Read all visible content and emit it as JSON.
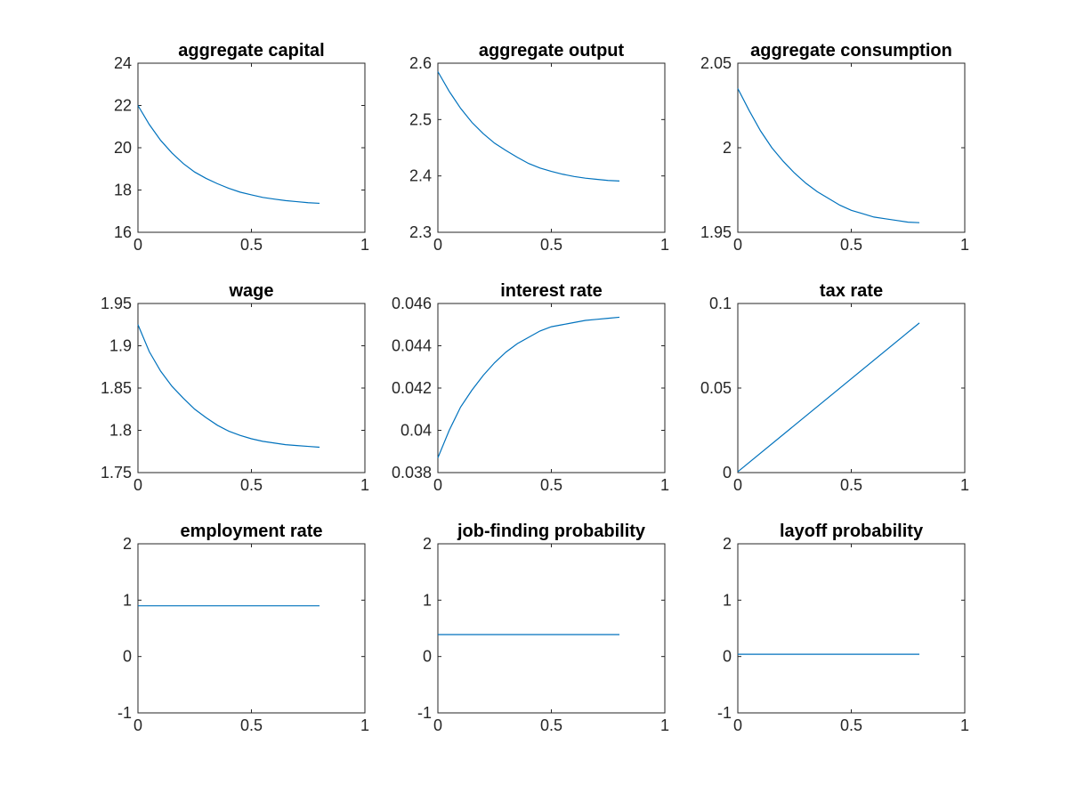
{
  "figure": {
    "background": "#ffffff",
    "line_color": "#0072BD"
  },
  "chart_data": [
    {
      "type": "line",
      "title": "aggregate capital",
      "xlim": [
        0,
        1
      ],
      "ylim": [
        16,
        24
      ],
      "xticks": [
        {
          "value": 0,
          "label": "0"
        },
        {
          "value": 0.5,
          "label": "0.5"
        },
        {
          "value": 1,
          "label": "1"
        }
      ],
      "yticks": [
        {
          "value": 16,
          "label": "16"
        },
        {
          "value": 18,
          "label": "18"
        },
        {
          "value": 20,
          "label": "20"
        },
        {
          "value": 22,
          "label": "22"
        },
        {
          "value": 24,
          "label": "24"
        }
      ],
      "x": [
        0,
        0.05,
        0.1,
        0.15,
        0.2,
        0.25,
        0.3,
        0.35,
        0.4,
        0.45,
        0.5,
        0.55,
        0.6,
        0.65,
        0.7,
        0.75,
        0.8
      ],
      "y": [
        22.0,
        21.1,
        20.35,
        19.75,
        19.25,
        18.85,
        18.55,
        18.3,
        18.08,
        17.9,
        17.77,
        17.65,
        17.57,
        17.5,
        17.45,
        17.4,
        17.37
      ]
    },
    {
      "type": "line",
      "title": "aggregate output",
      "xlim": [
        0,
        1
      ],
      "ylim": [
        2.3,
        2.6
      ],
      "xticks": [
        {
          "value": 0,
          "label": "0"
        },
        {
          "value": 0.5,
          "label": "0.5"
        },
        {
          "value": 1,
          "label": "1"
        }
      ],
      "yticks": [
        {
          "value": 2.3,
          "label": "2.3"
        },
        {
          "value": 2.4,
          "label": "2.4"
        },
        {
          "value": 2.5,
          "label": "2.5"
        },
        {
          "value": 2.6,
          "label": "2.6"
        }
      ],
      "x": [
        0,
        0.05,
        0.1,
        0.15,
        0.2,
        0.25,
        0.3,
        0.35,
        0.4,
        0.45,
        0.5,
        0.55,
        0.6,
        0.65,
        0.7,
        0.75,
        0.8
      ],
      "y": [
        2.585,
        2.55,
        2.52,
        2.495,
        2.475,
        2.458,
        2.445,
        2.433,
        2.422,
        2.414,
        2.408,
        2.403,
        2.399,
        2.396,
        2.394,
        2.392,
        2.391
      ]
    },
    {
      "type": "line",
      "title": "aggregate consumption",
      "xlim": [
        0,
        1
      ],
      "ylim": [
        1.95,
        2.05
      ],
      "xticks": [
        {
          "value": 0,
          "label": "0"
        },
        {
          "value": 0.5,
          "label": "0.5"
        },
        {
          "value": 1,
          "label": "1"
        }
      ],
      "yticks": [
        {
          "value": 1.95,
          "label": "1.95"
        },
        {
          "value": 2,
          "label": "2"
        },
        {
          "value": 2.05,
          "label": "2.05"
        }
      ],
      "x": [
        0,
        0.05,
        0.1,
        0.15,
        0.2,
        0.25,
        0.3,
        0.35,
        0.4,
        0.45,
        0.5,
        0.55,
        0.6,
        0.65,
        0.7,
        0.75,
        0.8
      ],
      "y": [
        2.035,
        2.022,
        2.01,
        2.0,
        1.992,
        1.985,
        1.979,
        1.974,
        1.97,
        1.966,
        1.963,
        1.961,
        1.959,
        1.958,
        1.957,
        1.956,
        1.9557
      ]
    },
    {
      "type": "line",
      "title": "wage",
      "xlim": [
        0,
        1
      ],
      "ylim": [
        1.75,
        1.95
      ],
      "xticks": [
        {
          "value": 0,
          "label": "0"
        },
        {
          "value": 0.5,
          "label": "0.5"
        },
        {
          "value": 1,
          "label": "1"
        }
      ],
      "yticks": [
        {
          "value": 1.75,
          "label": "1.75"
        },
        {
          "value": 1.8,
          "label": "1.8"
        },
        {
          "value": 1.85,
          "label": "1.85"
        },
        {
          "value": 1.9,
          "label": "1.9"
        },
        {
          "value": 1.95,
          "label": "1.95"
        }
      ],
      "x": [
        0,
        0.05,
        0.1,
        0.15,
        0.2,
        0.25,
        0.3,
        0.35,
        0.4,
        0.45,
        0.5,
        0.55,
        0.6,
        0.65,
        0.7,
        0.75,
        0.8
      ],
      "y": [
        1.925,
        1.893,
        1.87,
        1.852,
        1.838,
        1.825,
        1.815,
        1.806,
        1.799,
        1.794,
        1.79,
        1.787,
        1.785,
        1.783,
        1.782,
        1.781,
        1.78
      ]
    },
    {
      "type": "line",
      "title": "interest rate",
      "xlim": [
        0,
        1
      ],
      "ylim": [
        0.038,
        0.046
      ],
      "xticks": [
        {
          "value": 0,
          "label": "0"
        },
        {
          "value": 0.5,
          "label": "0.5"
        },
        {
          "value": 1,
          "label": "1"
        }
      ],
      "yticks": [
        {
          "value": 0.038,
          "label": "0.038"
        },
        {
          "value": 0.04,
          "label": "0.04"
        },
        {
          "value": 0.042,
          "label": "0.042"
        },
        {
          "value": 0.044,
          "label": "0.044"
        },
        {
          "value": 0.046,
          "label": "0.046"
        }
      ],
      "x": [
        0,
        0.05,
        0.1,
        0.15,
        0.2,
        0.25,
        0.3,
        0.35,
        0.4,
        0.45,
        0.5,
        0.55,
        0.6,
        0.65,
        0.7,
        0.75,
        0.8
      ],
      "y": [
        0.0387,
        0.04,
        0.0411,
        0.0419,
        0.0426,
        0.0432,
        0.0437,
        0.0441,
        0.0444,
        0.0447,
        0.0449,
        0.045,
        0.0451,
        0.0452,
        0.04525,
        0.0453,
        0.04535
      ]
    },
    {
      "type": "line",
      "title": "tax rate",
      "xlim": [
        0,
        1
      ],
      "ylim": [
        0,
        0.1
      ],
      "xticks": [
        {
          "value": 0,
          "label": "0"
        },
        {
          "value": 0.5,
          "label": "0.5"
        },
        {
          "value": 1,
          "label": "1"
        }
      ],
      "yticks": [
        {
          "value": 0,
          "label": "0"
        },
        {
          "value": 0.05,
          "label": "0.05"
        },
        {
          "value": 0.1,
          "label": "0.1"
        }
      ],
      "x": [
        0,
        0.8
      ],
      "y": [
        0.0005,
        0.0885
      ]
    },
    {
      "type": "line",
      "title": "employment rate",
      "xlim": [
        0,
        1
      ],
      "ylim": [
        -1,
        2
      ],
      "xticks": [
        {
          "value": 0,
          "label": "0"
        },
        {
          "value": 0.5,
          "label": "0.5"
        },
        {
          "value": 1,
          "label": "1"
        }
      ],
      "yticks": [
        {
          "value": -1,
          "label": "-1"
        },
        {
          "value": 0,
          "label": "0"
        },
        {
          "value": 1,
          "label": "1"
        },
        {
          "value": 2,
          "label": "2"
        }
      ],
      "x": [
        0,
        0.8
      ],
      "y": [
        0.9,
        0.9
      ]
    },
    {
      "type": "line",
      "title": "job-finding probability",
      "xlim": [
        0,
        1
      ],
      "ylim": [
        -1,
        2
      ],
      "xticks": [
        {
          "value": 0,
          "label": "0"
        },
        {
          "value": 0.5,
          "label": "0.5"
        },
        {
          "value": 1,
          "label": "1"
        }
      ],
      "yticks": [
        {
          "value": -1,
          "label": "-1"
        },
        {
          "value": 0,
          "label": "0"
        },
        {
          "value": 1,
          "label": "1"
        },
        {
          "value": 2,
          "label": "2"
        }
      ],
      "x": [
        0,
        0.8
      ],
      "y": [
        0.39,
        0.39
      ]
    },
    {
      "type": "line",
      "title": "layoff probability",
      "xlim": [
        0,
        1
      ],
      "ylim": [
        -1,
        2
      ],
      "xticks": [
        {
          "value": 0,
          "label": "0"
        },
        {
          "value": 0.5,
          "label": "0.5"
        },
        {
          "value": 1,
          "label": "1"
        }
      ],
      "yticks": [
        {
          "value": -1,
          "label": "-1"
        },
        {
          "value": 0,
          "label": "0"
        },
        {
          "value": 1,
          "label": "1"
        },
        {
          "value": 2,
          "label": "2"
        }
      ],
      "x": [
        0,
        0.8
      ],
      "y": [
        0.04,
        0.04
      ]
    }
  ]
}
